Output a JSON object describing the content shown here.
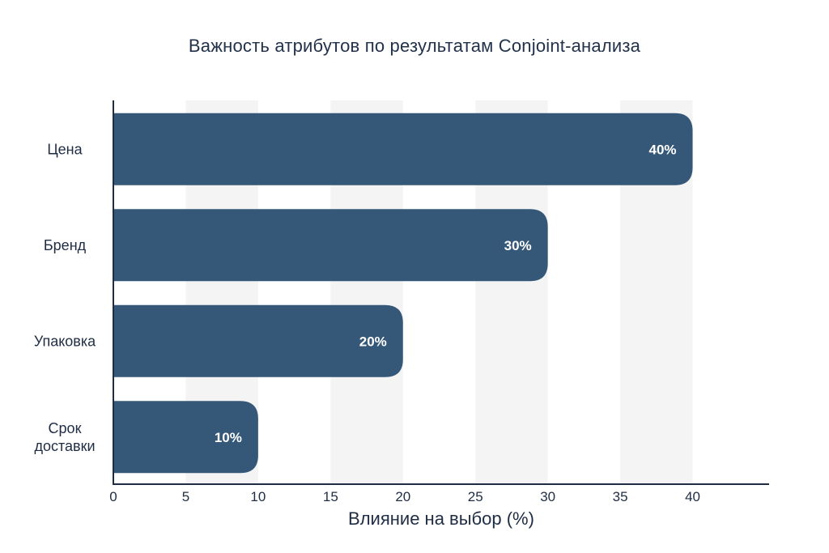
{
  "chart_data": {
    "type": "bar",
    "orientation": "horizontal",
    "title": "Важность атрибутов по результатам Conjoint-анализа",
    "xlabel": "Влияние на выбор (%)",
    "ylabel": "",
    "categories": [
      "Цена",
      "Бренд",
      "Упаковка",
      "Срок доставки"
    ],
    "category_lines": [
      [
        "Цена"
      ],
      [
        "Бренд"
      ],
      [
        "Упаковка"
      ],
      [
        "Срок",
        "доставки"
      ]
    ],
    "values": [
      40,
      30,
      20,
      10
    ],
    "value_labels": [
      "40%",
      "30%",
      "20%",
      "10%"
    ],
    "xlim": [
      0,
      45
    ],
    "xticks": [
      0,
      5,
      10,
      15,
      20,
      25,
      30,
      35,
      40
    ],
    "grid": "alternating-bands",
    "colors": {
      "bar": "#365878",
      "band": "#f4f4f4",
      "axis": "#1f2d44",
      "text": "#1f2d44",
      "bar_text": "#ffffff"
    }
  }
}
